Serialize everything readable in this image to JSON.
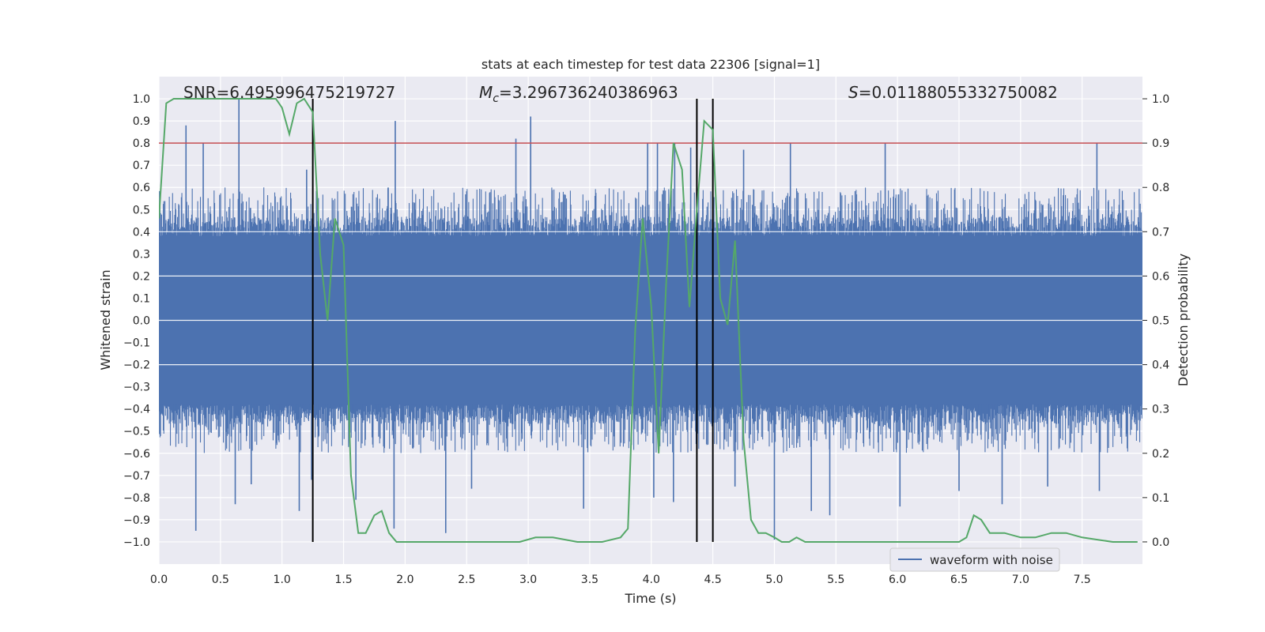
{
  "chart_data": {
    "type": "line",
    "title": "stats at each timestep for test data 22306 [signal=1]",
    "xlabel": "Time (s)",
    "ylabel_left": "Whitened strain",
    "ylabel_right": "Detection probability",
    "xlim": [
      0.0,
      7.99
    ],
    "ylim_left": [
      -1.1,
      1.1
    ],
    "ylim_right": [
      -0.05,
      1.05
    ],
    "x_ticks": [
      "0.0",
      "0.5",
      "1.0",
      "1.5",
      "2.0",
      "2.5",
      "3.0",
      "3.5",
      "4.0",
      "4.5",
      "5.0",
      "5.5",
      "6.0",
      "6.5",
      "7.0",
      "7.5"
    ],
    "y_ticks_left": [
      "−1.0",
      "−0.9",
      "−0.8",
      "−0.7",
      "−0.6",
      "−0.5",
      "−0.4",
      "−0.3",
      "−0.2",
      "−0.1",
      "0.0",
      "0.1",
      "0.2",
      "0.3",
      "0.4",
      "0.5",
      "0.6",
      "0.7",
      "0.8",
      "0.9",
      "1.0"
    ],
    "y_ticks_right": [
      "0.0",
      "0.1",
      "0.2",
      "0.3",
      "0.4",
      "0.5",
      "0.6",
      "0.7",
      "0.8",
      "0.9",
      "1.0"
    ],
    "grid": true,
    "legend": {
      "position": "bottom-right",
      "entries": [
        "waveform with noise"
      ]
    },
    "annotations": {
      "snr_text": "SNR=6.495996475219727",
      "mc_label": "M",
      "mc_sub": "c",
      "mc_value": "=3.296736240386963",
      "s_label": "S",
      "s_value": "=0.01188055332750082"
    },
    "threshold_line": {
      "axis": "right",
      "value": 0.9,
      "color": "#c44e52"
    },
    "vertical_lines": [
      1.25,
      4.37,
      4.5
    ],
    "waveform": {
      "name": "waveform with noise",
      "color": "#4c72b0",
      "core_band": [
        -0.38,
        0.38
      ],
      "positive_peaks": [
        [
          0.22,
          0.88
        ],
        [
          0.36,
          0.8
        ],
        [
          0.65,
          1.0
        ],
        [
          1.2,
          0.68
        ],
        [
          1.92,
          0.9
        ],
        [
          2.9,
          0.82
        ],
        [
          3.02,
          0.92
        ],
        [
          3.97,
          0.8
        ],
        [
          4.05,
          0.8
        ],
        [
          4.19,
          0.8
        ],
        [
          4.32,
          0.78
        ],
        [
          4.75,
          0.77
        ],
        [
          5.13,
          0.8
        ],
        [
          5.9,
          0.8
        ],
        [
          7.62,
          0.8
        ]
      ],
      "negative_peaks": [
        [
          0.3,
          -0.95
        ],
        [
          0.62,
          -0.83
        ],
        [
          0.75,
          -0.74
        ],
        [
          1.14,
          -0.86
        ],
        [
          1.24,
          -0.72
        ],
        [
          1.6,
          -0.81
        ],
        [
          1.91,
          -0.94
        ],
        [
          2.33,
          -0.96
        ],
        [
          2.54,
          -0.76
        ],
        [
          3.45,
          -0.85
        ],
        [
          4.02,
          -0.8
        ],
        [
          4.18,
          -0.82
        ],
        [
          4.68,
          -0.75
        ],
        [
          5.0,
          -0.99
        ],
        [
          5.3,
          -0.86
        ],
        [
          5.45,
          -0.88
        ],
        [
          6.02,
          -0.84
        ],
        [
          6.5,
          -0.77
        ],
        [
          6.85,
          -0.83
        ],
        [
          7.22,
          -0.75
        ],
        [
          7.64,
          -0.77
        ]
      ]
    },
    "detection_probability": {
      "name": "detection probability",
      "color": "#55a868",
      "x": [
        0.0,
        0.06,
        0.12,
        0.18,
        0.25,
        0.5,
        0.75,
        0.95,
        1.0,
        1.06,
        1.12,
        1.18,
        1.25,
        1.31,
        1.37,
        1.43,
        1.5,
        1.56,
        1.62,
        1.68,
        1.75,
        1.81,
        1.87,
        1.93,
        2.0,
        2.06,
        2.2,
        2.5,
        2.8,
        2.93,
        3.06,
        3.2,
        3.4,
        3.6,
        3.75,
        3.81,
        3.87,
        3.93,
        4.0,
        4.06,
        4.12,
        4.18,
        4.25,
        4.31,
        4.37,
        4.43,
        4.5,
        4.56,
        4.62,
        4.68,
        4.75,
        4.81,
        4.87,
        4.93,
        5.0,
        5.06,
        5.12,
        5.18,
        5.25,
        5.4,
        5.8,
        6.2,
        6.5,
        6.56,
        6.62,
        6.68,
        6.75,
        6.87,
        7.0,
        7.12,
        7.25,
        7.37,
        7.5,
        7.75,
        7.95
      ],
      "values": [
        0.73,
        0.99,
        1.0,
        1.0,
        1.0,
        1.0,
        1.0,
        1.0,
        0.98,
        0.92,
        0.99,
        1.0,
        0.97,
        0.65,
        0.5,
        0.73,
        0.67,
        0.15,
        0.02,
        0.02,
        0.06,
        0.07,
        0.02,
        0.0,
        0.0,
        0.0,
        0.0,
        0.0,
        0.0,
        0.0,
        0.01,
        0.01,
        0.0,
        0.0,
        0.01,
        0.03,
        0.48,
        0.73,
        0.53,
        0.2,
        0.58,
        0.9,
        0.84,
        0.53,
        0.75,
        0.95,
        0.93,
        0.55,
        0.49,
        0.68,
        0.23,
        0.05,
        0.02,
        0.02,
        0.01,
        0.0,
        0.0,
        0.01,
        0.0,
        0.0,
        0.0,
        0.0,
        0.0,
        0.01,
        0.06,
        0.05,
        0.02,
        0.02,
        0.01,
        0.01,
        0.02,
        0.02,
        0.01,
        0.0,
        0.0
      ]
    }
  }
}
